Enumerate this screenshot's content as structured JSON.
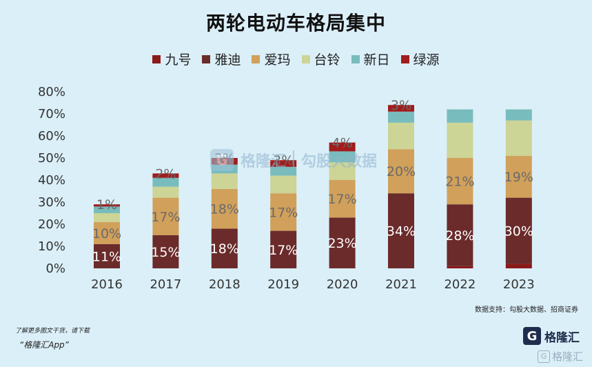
{
  "chart_data": {
    "type": "bar",
    "stacked": true,
    "title": "两轮电动车格局集中",
    "categories": [
      "2016",
      "2017",
      "2018",
      "2019",
      "2020",
      "2021",
      "2022",
      "2023"
    ],
    "y_ticks": [
      "0%",
      "10%",
      "20%",
      "30%",
      "40%",
      "50%",
      "60%",
      "70%",
      "80%"
    ],
    "ylim": [
      0,
      80
    ],
    "legend_position": "top",
    "series": [
      {
        "name": "九号",
        "color": "#8b1a1a",
        "values": [
          0,
          0,
          0,
          0,
          0,
          0,
          1,
          2
        ],
        "labels": [
          "",
          "",
          "",
          "",
          "",
          "",
          "",
          ""
        ]
      },
      {
        "name": "雅迪",
        "color": "#6b2b2b",
        "values": [
          11,
          15,
          18,
          17,
          23,
          34,
          28,
          30
        ],
        "labels": [
          "11%",
          "15%",
          "18%",
          "17%",
          "23%",
          "34%",
          "28%",
          "30%"
        ]
      },
      {
        "name": "爱玛",
        "color": "#d1a05a",
        "values": [
          10,
          17,
          18,
          17,
          17,
          20,
          21,
          19
        ],
        "labels": [
          "10%",
          "17%",
          "18%",
          "17%",
          "17%",
          "20%",
          "21%",
          "19%"
        ]
      },
      {
        "name": "台铃",
        "color": "#ccd496",
        "values": [
          4,
          5,
          7,
          8,
          8,
          12,
          16,
          16
        ],
        "labels": [
          "",
          "",
          "",
          "",
          "",
          "",
          "",
          ""
        ]
      },
      {
        "name": "新日",
        "color": "#79bcbd",
        "values": [
          3,
          4,
          4,
          4,
          5,
          5,
          6,
          5
        ],
        "labels": [
          "",
          "",
          "",
          "",
          "",
          "",
          "",
          ""
        ]
      },
      {
        "name": "绿源",
        "color": "#a11c1c",
        "values": [
          1,
          2,
          3,
          3,
          4,
          3,
          0,
          0
        ],
        "labels": [
          "1%",
          "2%",
          "3%",
          "3%",
          "4%",
          "3%",
          "",
          ""
        ]
      }
    ]
  },
  "source": "数据支持：勾股大数据、招商证券",
  "footer": {
    "note": "了解更多图文干货，请下载",
    "app": "“格隆汇App”"
  },
  "brand": {
    "mark": "G",
    "name": "格隆汇",
    "watermark": "格隆汇"
  },
  "watermark": {
    "logo": "G",
    "brand": "格隆汇",
    "site": "勾股大数据"
  }
}
